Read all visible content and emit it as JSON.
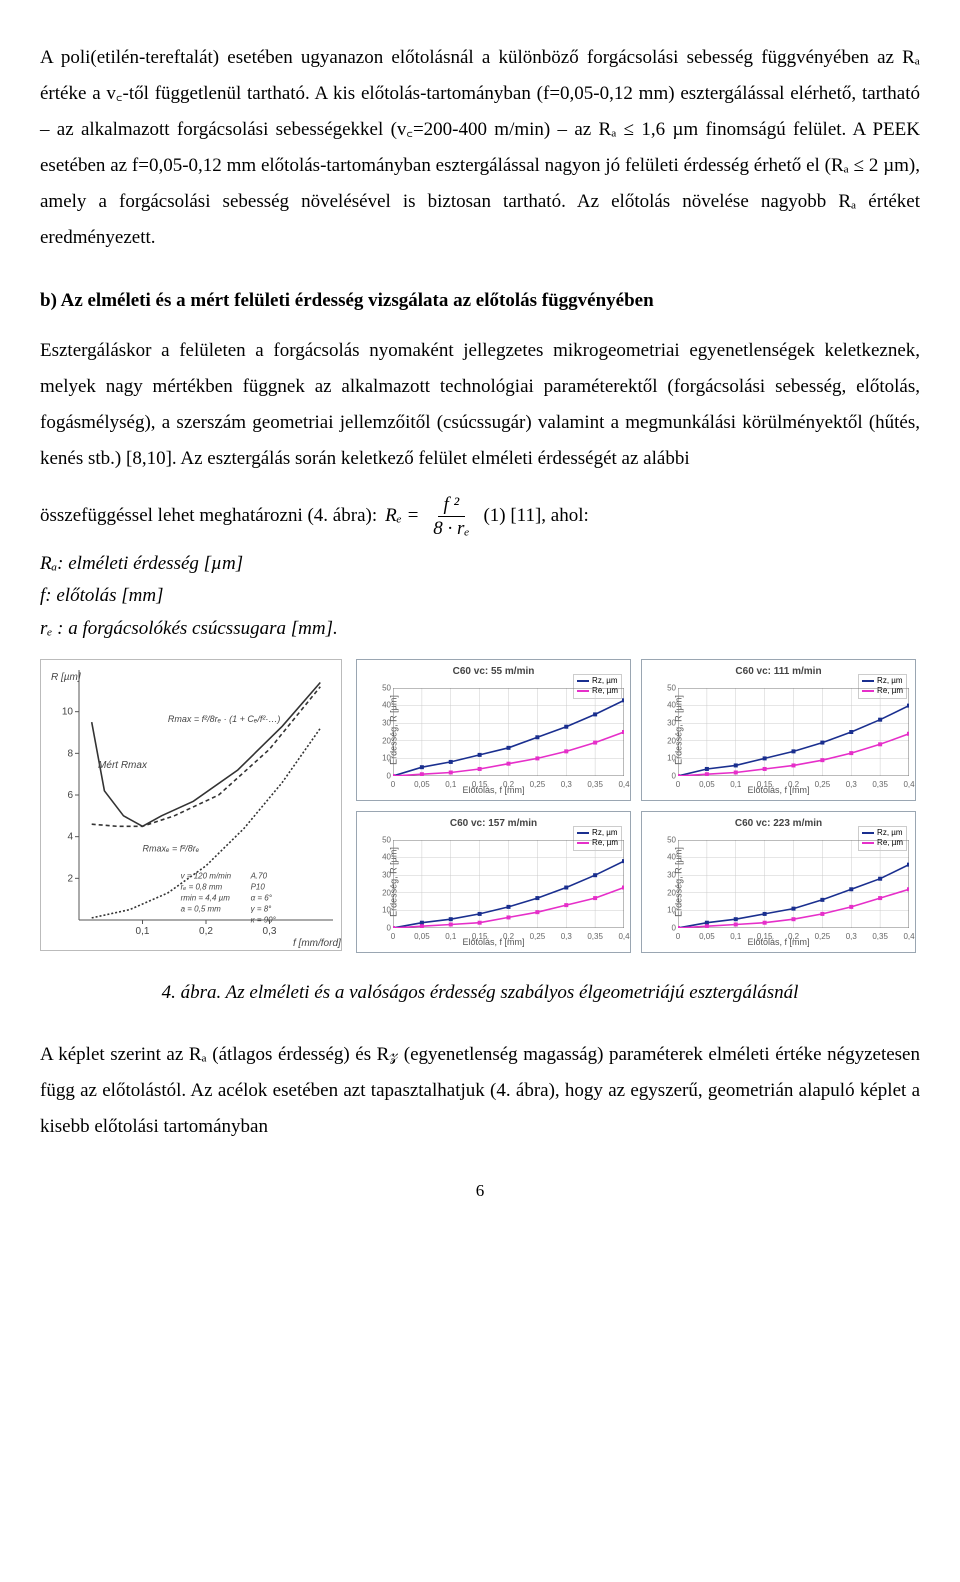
{
  "para1": "A poli(etilén-tereftalát) esetében ugyanazon előtolásnál a különböző forgácsolási sebesség függvényében az Rₐ értéke a v꜀-től függetlenül tartható. A kis előtolás-tartományban (f=0,05-0,12 mm) esztergálással elérhető, tartható – az alkalmazott forgácsolási sebességekkel (v꜀=200-400 m/min) – az Rₐ ≤ 1,6 µm finomságú felület. A PEEK esetében az f=0,05-0,12 mm előtolás-tartományban esztergálással nagyon jó felületi érdesség érhető el (Rₐ ≤ 2 µm), amely a forgácsolási sebesség növelésével is biztosan tartható. Az előtolás növelése nagyobb Rₐ értéket eredményezett.",
  "heading_b": "b) Az elméleti és a mért felületi érdesség vizsgálata az előtolás függvényében",
  "para2": "Esztergáláskor a felületen a forgácsolás nyomaként jellegzetes mikrogeometriai egyenetlenségek keletkeznek, melyek nagy mértékben függnek az alkalmazott technológiai paraméterektől (forgácsolási sebesség, előtolás, fogásmélység), a szerszám geometriai jellemzőitől (csúcssugár) valamint a megmunkálási körülményektől (hűtés, kenés stb.) [8,10]. Az esztergálás során keletkező felület elméleti érdességét az alábbi",
  "formula_intro": "összefüggéssel lehet meghatározni (4. ábra):",
  "formula_num": "f ²",
  "formula_den": "8 · rₑ",
  "formula_eq": "Rₑ =",
  "formula_after": "(1) [11], ahol:",
  "defs": {
    "d1": "Rₐ: elméleti érdesség [µm]",
    "d2": "f: előtolás [mm]",
    "d3": "rₑ : a forgácsolókés csúcssugara [mm]."
  },
  "leftplot": {
    "ylabel": "R [µm]",
    "xlabel": "f [mm/ford]",
    "ylim": [
      0,
      12
    ],
    "yticks": [
      2,
      4,
      6,
      8,
      10
    ],
    "xlim": [
      0,
      0.4
    ],
    "xticks": [
      0.1,
      0.2,
      0.3
    ],
    "measured_label": "Mért Rmax",
    "eq1": "Rmax = f²/8rₑ · (1 + Cₑ/f²·…)",
    "eq2": "Rmaxₑ = f²/8rₑ",
    "params": [
      "v = 120 m/min",
      "rₑ = 0,8 mm",
      "rmin = 4,4 µm",
      "a = 0,5 mm",
      "A.70",
      "P10",
      "α = 6°",
      "γ = 8°",
      "κ = 90°"
    ],
    "curves": {
      "measured": [
        [
          0.02,
          9.5
        ],
        [
          0.04,
          6.2
        ],
        [
          0.07,
          5.0
        ],
        [
          0.1,
          4.5
        ],
        [
          0.13,
          5.0
        ],
        [
          0.18,
          5.7
        ],
        [
          0.25,
          7.2
        ],
        [
          0.32,
          9.3
        ],
        [
          0.38,
          11.4
        ]
      ],
      "upper": [
        [
          0.02,
          4.6
        ],
        [
          0.06,
          4.5
        ],
        [
          0.1,
          4.5
        ],
        [
          0.15,
          5.0
        ],
        [
          0.22,
          6.0
        ],
        [
          0.3,
          8.2
        ],
        [
          0.38,
          11.2
        ]
      ],
      "lower": [
        [
          0.02,
          0.1
        ],
        [
          0.08,
          0.5
        ],
        [
          0.14,
          1.3
        ],
        [
          0.2,
          2.6
        ],
        [
          0.26,
          4.4
        ],
        [
          0.32,
          6.6
        ],
        [
          0.38,
          9.2
        ]
      ]
    },
    "colors": {
      "axes": "#555",
      "curve": "#333"
    }
  },
  "minis": {
    "xticks": [
      0,
      0.05,
      0.1,
      0.15,
      0.2,
      0.25,
      0.3,
      0.35,
      0.4
    ],
    "xlabel": "Előtolás, f [mm]",
    "ylabel": "Érdesség, R [µm]",
    "ylim": [
      0,
      50
    ],
    "yticks": [
      0,
      10,
      20,
      30,
      40,
      50
    ],
    "grid_color": "#cccccc",
    "axis_color": "#777",
    "legend": {
      "rz": "Rz, µm",
      "re": "Re, µm"
    },
    "colors": {
      "rz": "#1a2f8f",
      "re": "#e62fc9"
    },
    "charts": [
      {
        "title": "C60 vc: 55 m/min",
        "rz": [
          [
            0,
            0
          ],
          [
            0.05,
            5
          ],
          [
            0.1,
            8
          ],
          [
            0.15,
            12
          ],
          [
            0.2,
            16
          ],
          [
            0.25,
            22
          ],
          [
            0.3,
            28
          ],
          [
            0.35,
            35
          ],
          [
            0.4,
            43
          ]
        ],
        "re": [
          [
            0,
            0
          ],
          [
            0.05,
            1
          ],
          [
            0.1,
            2
          ],
          [
            0.15,
            4
          ],
          [
            0.2,
            7
          ],
          [
            0.25,
            10
          ],
          [
            0.3,
            14
          ],
          [
            0.35,
            19
          ],
          [
            0.4,
            25
          ]
        ]
      },
      {
        "title": "C60 vc: 111 m/min",
        "rz": [
          [
            0,
            0
          ],
          [
            0.05,
            4
          ],
          [
            0.1,
            6
          ],
          [
            0.15,
            10
          ],
          [
            0.2,
            14
          ],
          [
            0.25,
            19
          ],
          [
            0.3,
            25
          ],
          [
            0.35,
            32
          ],
          [
            0.4,
            40
          ]
        ],
        "re": [
          [
            0,
            0
          ],
          [
            0.05,
            1
          ],
          [
            0.1,
            2
          ],
          [
            0.15,
            4
          ],
          [
            0.2,
            6
          ],
          [
            0.25,
            9
          ],
          [
            0.3,
            13
          ],
          [
            0.35,
            18
          ],
          [
            0.4,
            24
          ]
        ]
      },
      {
        "title": "C60 vc: 157 m/min",
        "rz": [
          [
            0,
            0
          ],
          [
            0.05,
            3
          ],
          [
            0.1,
            5
          ],
          [
            0.15,
            8
          ],
          [
            0.2,
            12
          ],
          [
            0.25,
            17
          ],
          [
            0.3,
            23
          ],
          [
            0.35,
            30
          ],
          [
            0.4,
            38
          ]
        ],
        "re": [
          [
            0,
            0
          ],
          [
            0.05,
            1
          ],
          [
            0.1,
            2
          ],
          [
            0.15,
            3
          ],
          [
            0.2,
            6
          ],
          [
            0.25,
            9
          ],
          [
            0.3,
            13
          ],
          [
            0.35,
            17
          ],
          [
            0.4,
            23
          ]
        ]
      },
      {
        "title": "C60 vc: 223 m/min",
        "rz": [
          [
            0,
            0
          ],
          [
            0.05,
            3
          ],
          [
            0.1,
            5
          ],
          [
            0.15,
            8
          ],
          [
            0.2,
            11
          ],
          [
            0.25,
            16
          ],
          [
            0.3,
            22
          ],
          [
            0.35,
            28
          ],
          [
            0.4,
            36
          ]
        ],
        "re": [
          [
            0,
            0
          ],
          [
            0.05,
            1
          ],
          [
            0.1,
            2
          ],
          [
            0.15,
            3
          ],
          [
            0.2,
            5
          ],
          [
            0.25,
            8
          ],
          [
            0.3,
            12
          ],
          [
            0.35,
            17
          ],
          [
            0.4,
            22
          ]
        ]
      }
    ]
  },
  "caption": "4. ábra. Az elméleti és a valóságos érdesség szabályos élgeometriájú esztergálásnál",
  "para3": "A képlet szerint az Rₐ (átlagos érdesség) és R𝓏 (egyenetlenség magasság) paraméterek elméleti értéke négyzetesen függ az előtolástól. Az acélok esetében azt tapasztalhatjuk (4. ábra), hogy az egyszerű, geometrián alapuló képlet a kisebb előtolási tartományban",
  "pagenum": "6"
}
